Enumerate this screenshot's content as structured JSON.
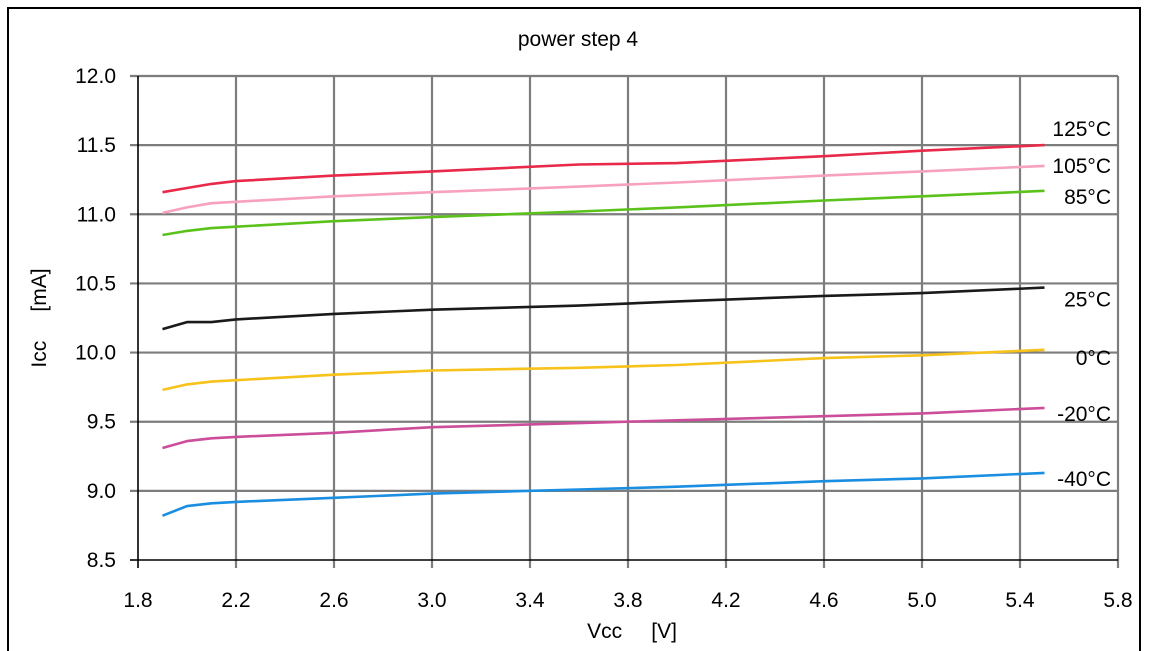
{
  "chart_data": {
    "type": "line",
    "title": "power step 4",
    "xlabel": "Vcc     [V]",
    "ylabel": "Icc     [mA]",
    "xlim": [
      1.8,
      5.8
    ],
    "ylim": [
      8.5,
      12.0
    ],
    "x_ticks": [
      "1.8",
      "2.2",
      "2.6",
      "3.0",
      "3.4",
      "3.8",
      "4.2",
      "4.6",
      "5.0",
      "5.4",
      "5.8"
    ],
    "y_ticks": [
      "8.5",
      "9.0",
      "9.5",
      "10.0",
      "10.5",
      "11.0",
      "11.5",
      "12.0"
    ],
    "grid": true,
    "legend": "none (series labelled at right end of lines)",
    "series": [
      {
        "name": "125°C",
        "color": "#e8294a",
        "points": [
          [
            1.9,
            11.16
          ],
          [
            2.0,
            11.19
          ],
          [
            2.1,
            11.22
          ],
          [
            2.2,
            11.24
          ],
          [
            2.6,
            11.28
          ],
          [
            3.0,
            11.31
          ],
          [
            3.6,
            11.36
          ],
          [
            4.0,
            11.37
          ],
          [
            4.6,
            11.42
          ],
          [
            5.0,
            11.46
          ],
          [
            5.5,
            11.5
          ]
        ]
      },
      {
        "name": "105°C",
        "color": "#f7a0c0",
        "points": [
          [
            1.9,
            11.01
          ],
          [
            2.0,
            11.05
          ],
          [
            2.1,
            11.08
          ],
          [
            2.2,
            11.09
          ],
          [
            2.6,
            11.13
          ],
          [
            3.0,
            11.16
          ],
          [
            3.6,
            11.2
          ],
          [
            4.0,
            11.23
          ],
          [
            4.6,
            11.28
          ],
          [
            5.0,
            11.31
          ],
          [
            5.5,
            11.35
          ]
        ]
      },
      {
        "name": "85°C",
        "color": "#5ac21a",
        "points": [
          [
            1.9,
            10.85
          ],
          [
            2.0,
            10.88
          ],
          [
            2.1,
            10.9
          ],
          [
            2.2,
            10.91
          ],
          [
            2.6,
            10.95
          ],
          [
            3.0,
            10.98
          ],
          [
            3.6,
            11.02
          ],
          [
            4.0,
            11.05
          ],
          [
            4.6,
            11.1
          ],
          [
            5.0,
            11.13
          ],
          [
            5.5,
            11.17
          ]
        ]
      },
      {
        "name": "25°C",
        "color": "#1a1a1a",
        "points": [
          [
            1.9,
            10.17
          ],
          [
            2.0,
            10.22
          ],
          [
            2.1,
            10.22
          ],
          [
            2.2,
            10.24
          ],
          [
            2.6,
            10.28
          ],
          [
            3.0,
            10.31
          ],
          [
            3.6,
            10.34
          ],
          [
            4.0,
            10.37
          ],
          [
            4.6,
            10.41
          ],
          [
            5.0,
            10.43
          ],
          [
            5.5,
            10.47
          ]
        ]
      },
      {
        "name": "0°C",
        "color": "#f7c21a",
        "points": [
          [
            1.9,
            9.73
          ],
          [
            2.0,
            9.77
          ],
          [
            2.1,
            9.79
          ],
          [
            2.2,
            9.8
          ],
          [
            2.6,
            9.84
          ],
          [
            3.0,
            9.87
          ],
          [
            3.6,
            9.89
          ],
          [
            4.0,
            9.91
          ],
          [
            4.6,
            9.96
          ],
          [
            5.0,
            9.98
          ],
          [
            5.5,
            10.02
          ]
        ]
      },
      {
        "name": "-20°C",
        "color": "#cc4d9a",
        "points": [
          [
            1.9,
            9.31
          ],
          [
            2.0,
            9.36
          ],
          [
            2.1,
            9.38
          ],
          [
            2.2,
            9.39
          ],
          [
            2.6,
            9.42
          ],
          [
            3.0,
            9.46
          ],
          [
            3.6,
            9.49
          ],
          [
            4.0,
            9.51
          ],
          [
            4.6,
            9.54
          ],
          [
            5.0,
            9.56
          ],
          [
            5.5,
            9.6
          ]
        ]
      },
      {
        "name": "-40°C",
        "color": "#1a8ee0",
        "points": [
          [
            1.9,
            8.82
          ],
          [
            2.0,
            8.89
          ],
          [
            2.1,
            8.91
          ],
          [
            2.2,
            8.92
          ],
          [
            2.6,
            8.95
          ],
          [
            3.0,
            8.98
          ],
          [
            3.6,
            9.01
          ],
          [
            4.0,
            9.03
          ],
          [
            4.6,
            9.07
          ],
          [
            5.0,
            9.09
          ],
          [
            5.5,
            9.13
          ]
        ]
      }
    ]
  }
}
